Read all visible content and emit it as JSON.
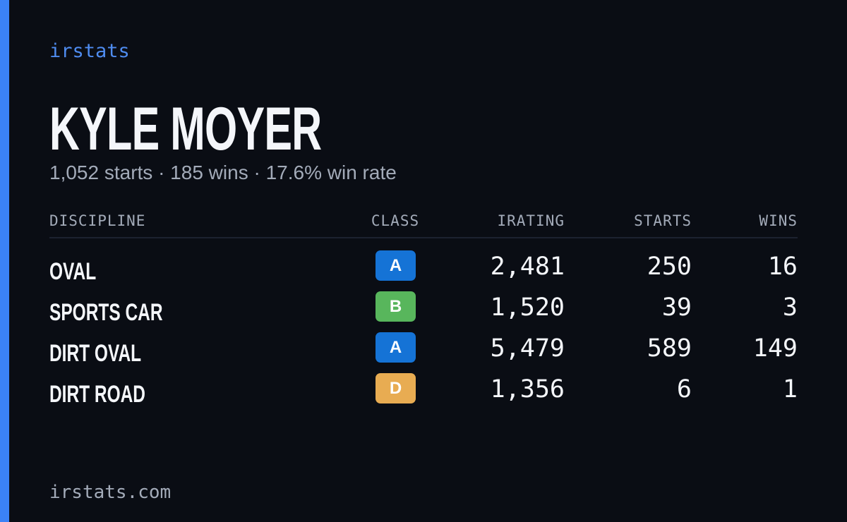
{
  "brand": "irstats",
  "name": "KYLE MOYER",
  "summary": "1,052 starts · 185 wins · 17.6% win rate",
  "table": {
    "headers": [
      "DISCIPLINE",
      "CLASS",
      "IRATING",
      "STARTS",
      "WINS"
    ],
    "rows": [
      [
        "OVAL",
        "A",
        "2,481",
        "250",
        "16"
      ],
      [
        "SPORTS CAR",
        "B",
        "1,520",
        "39",
        "3"
      ],
      [
        "DIRT OVAL",
        "A",
        "5,479",
        "589",
        "149"
      ],
      [
        "DIRT ROAD",
        "D",
        "1,356",
        "6",
        "1"
      ]
    ]
  },
  "class_colors": {
    "A": "#1573d6",
    "B": "#58b65c",
    "D": "#e8ac52"
  },
  "footer": "irstats.com"
}
